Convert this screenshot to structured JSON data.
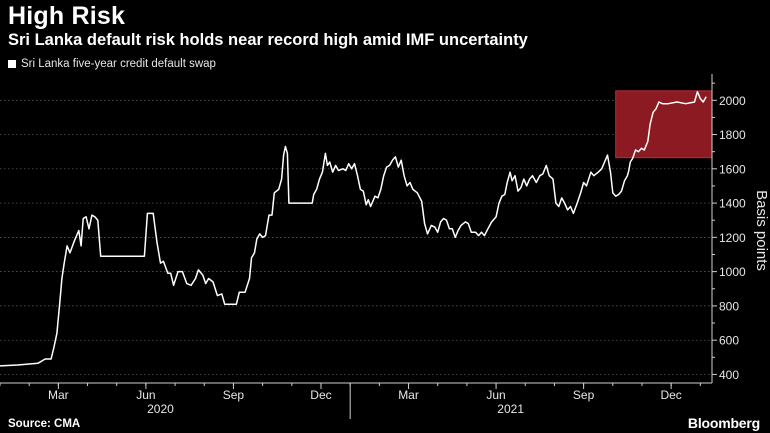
{
  "header": {
    "title": "High Risk",
    "subtitle": "Sri Lanka default risk holds near record high amid IMF uncertainty"
  },
  "footer": {
    "source": "Source: CMA",
    "brand": "Bloomberg"
  },
  "colors": {
    "background": "#000000",
    "line": "#ffffff",
    "highlight_fill": "#8b1a22",
    "highlight_border": "#c0283a",
    "grid": "#666666"
  },
  "chart_data": {
    "type": "line",
    "title": "High Risk",
    "subtitle": "Sri Lanka default risk holds near record high amid IMF uncertainty",
    "xlabel": "",
    "ylabel": "Basis points",
    "ylim": [
      350,
      2130
    ],
    "yticks": [
      400,
      600,
      800,
      1000,
      1200,
      1400,
      1600,
      1800,
      2000
    ],
    "y_axis_side": "right",
    "grid": true,
    "legend_position": "top-left",
    "x_month_ticks": [
      {
        "label": "Mar",
        "month": 2.0
      },
      {
        "label": "Jun",
        "month": 5.0
      },
      {
        "label": "Sep",
        "month": 8.0
      },
      {
        "label": "Dec",
        "month": 11.0
      },
      {
        "label": "Mar",
        "month": 14.0
      },
      {
        "label": "Jun",
        "month": 17.0
      },
      {
        "label": "Sep",
        "month": 20.0
      },
      {
        "label": "Dec",
        "month": 23.0
      }
    ],
    "x_year_labels": [
      {
        "label": "2020",
        "month": 5.5
      },
      {
        "label": "2021",
        "month": 17.5
      }
    ],
    "x_range_months": [
      0.0,
      24.4
    ],
    "x_year_separator_month": 12.0,
    "highlight": {
      "x": [
        21.1,
        24.4
      ],
      "y": [
        1665,
        2055
      ]
    },
    "series": [
      {
        "name": "Sri Lanka five-year credit default swap",
        "points": [
          [
            0.0,
            450
          ],
          [
            0.6,
            455
          ],
          [
            0.9,
            460
          ],
          [
            1.3,
            465
          ],
          [
            1.55,
            490
          ],
          [
            1.75,
            490
          ],
          [
            1.85,
            560
          ],
          [
            1.95,
            640
          ],
          [
            2.05,
            820
          ],
          [
            2.12,
            960
          ],
          [
            2.2,
            1050
          ],
          [
            2.3,
            1150
          ],
          [
            2.4,
            1110
          ],
          [
            2.55,
            1180
          ],
          [
            2.7,
            1240
          ],
          [
            2.78,
            1150
          ],
          [
            2.85,
            1310
          ],
          [
            2.95,
            1320
          ],
          [
            3.05,
            1250
          ],
          [
            3.15,
            1330
          ],
          [
            3.25,
            1320
          ],
          [
            3.35,
            1300
          ],
          [
            3.45,
            1090
          ],
          [
            3.9,
            1090
          ],
          [
            4.5,
            1090
          ],
          [
            4.95,
            1090
          ],
          [
            5.05,
            1340
          ],
          [
            5.25,
            1340
          ],
          [
            5.38,
            1170
          ],
          [
            5.5,
            1050
          ],
          [
            5.6,
            1060
          ],
          [
            5.75,
            990
          ],
          [
            5.85,
            990
          ],
          [
            5.95,
            920
          ],
          [
            6.1,
            1000
          ],
          [
            6.25,
            1000
          ],
          [
            6.4,
            930
          ],
          [
            6.55,
            920
          ],
          [
            6.7,
            960
          ],
          [
            6.8,
            1010
          ],
          [
            6.95,
            980
          ],
          [
            7.05,
            930
          ],
          [
            7.15,
            960
          ],
          [
            7.3,
            940
          ],
          [
            7.45,
            860
          ],
          [
            7.6,
            870
          ],
          [
            7.7,
            810
          ],
          [
            7.95,
            810
          ],
          [
            8.1,
            810
          ],
          [
            8.2,
            880
          ],
          [
            8.4,
            880
          ],
          [
            8.55,
            960
          ],
          [
            8.62,
            1080
          ],
          [
            8.72,
            1110
          ],
          [
            8.8,
            1190
          ],
          [
            8.9,
            1220
          ],
          [
            9.0,
            1200
          ],
          [
            9.1,
            1210
          ],
          [
            9.22,
            1330
          ],
          [
            9.32,
            1330
          ],
          [
            9.4,
            1460
          ],
          [
            9.55,
            1480
          ],
          [
            9.65,
            1540
          ],
          [
            9.72,
            1680
          ],
          [
            9.78,
            1730
          ],
          [
            9.85,
            1690
          ],
          [
            9.9,
            1400
          ],
          [
            10.0,
            1400
          ],
          [
            10.2,
            1400
          ],
          [
            10.4,
            1400
          ],
          [
            10.7,
            1400
          ],
          [
            10.75,
            1450
          ],
          [
            10.85,
            1480
          ],
          [
            10.95,
            1540
          ],
          [
            11.05,
            1580
          ],
          [
            11.15,
            1690
          ],
          [
            11.22,
            1620
          ],
          [
            11.3,
            1640
          ],
          [
            11.4,
            1580
          ],
          [
            11.5,
            1620
          ],
          [
            11.6,
            1590
          ],
          [
            11.75,
            1600
          ],
          [
            11.85,
            1590
          ],
          [
            11.95,
            1630
          ],
          [
            12.05,
            1600
          ],
          [
            12.15,
            1630
          ],
          [
            12.25,
            1560
          ],
          [
            12.35,
            1480
          ],
          [
            12.45,
            1470
          ],
          [
            12.55,
            1390
          ],
          [
            12.62,
            1420
          ],
          [
            12.7,
            1380
          ],
          [
            12.85,
            1440
          ],
          [
            12.95,
            1430
          ],
          [
            13.05,
            1480
          ],
          [
            13.15,
            1560
          ],
          [
            13.25,
            1610
          ],
          [
            13.35,
            1620
          ],
          [
            13.45,
            1650
          ],
          [
            13.55,
            1670
          ],
          [
            13.65,
            1610
          ],
          [
            13.75,
            1650
          ],
          [
            13.85,
            1560
          ],
          [
            13.95,
            1500
          ],
          [
            14.05,
            1520
          ],
          [
            14.15,
            1480
          ],
          [
            14.3,
            1460
          ],
          [
            14.45,
            1410
          ],
          [
            14.55,
            1280
          ],
          [
            14.65,
            1220
          ],
          [
            14.78,
            1270
          ],
          [
            14.9,
            1260
          ],
          [
            15.0,
            1230
          ],
          [
            15.1,
            1290
          ],
          [
            15.2,
            1310
          ],
          [
            15.3,
            1300
          ],
          [
            15.4,
            1250
          ],
          [
            15.5,
            1250
          ],
          [
            15.6,
            1200
          ],
          [
            15.7,
            1240
          ],
          [
            15.8,
            1270
          ],
          [
            15.95,
            1290
          ],
          [
            16.05,
            1280
          ],
          [
            16.15,
            1230
          ],
          [
            16.3,
            1230
          ],
          [
            16.4,
            1210
          ],
          [
            16.5,
            1230
          ],
          [
            16.6,
            1210
          ],
          [
            16.72,
            1250
          ],
          [
            16.85,
            1290
          ],
          [
            17.0,
            1320
          ],
          [
            17.1,
            1400
          ],
          [
            17.2,
            1440
          ],
          [
            17.3,
            1450
          ],
          [
            17.38,
            1520
          ],
          [
            17.48,
            1580
          ],
          [
            17.55,
            1530
          ],
          [
            17.65,
            1560
          ],
          [
            17.75,
            1470
          ],
          [
            17.85,
            1490
          ],
          [
            17.95,
            1540
          ],
          [
            18.05,
            1500
          ],
          [
            18.15,
            1540
          ],
          [
            18.25,
            1560
          ],
          [
            18.38,
            1520
          ],
          [
            18.5,
            1560
          ],
          [
            18.6,
            1570
          ],
          [
            18.72,
            1620
          ],
          [
            18.82,
            1560
          ],
          [
            18.95,
            1540
          ],
          [
            19.05,
            1400
          ],
          [
            19.15,
            1380
          ],
          [
            19.25,
            1430
          ],
          [
            19.35,
            1400
          ],
          [
            19.45,
            1360
          ],
          [
            19.55,
            1380
          ],
          [
            19.65,
            1340
          ],
          [
            19.78,
            1400
          ],
          [
            19.9,
            1460
          ],
          [
            20.0,
            1520
          ],
          [
            20.1,
            1500
          ],
          [
            20.25,
            1580
          ],
          [
            20.35,
            1560
          ],
          [
            20.5,
            1580
          ],
          [
            20.62,
            1600
          ],
          [
            20.72,
            1640
          ],
          [
            20.82,
            1680
          ],
          [
            20.92,
            1580
          ],
          [
            21.0,
            1460
          ],
          [
            21.1,
            1440
          ],
          [
            21.2,
            1450
          ],
          [
            21.3,
            1470
          ],
          [
            21.4,
            1530
          ],
          [
            21.5,
            1560
          ],
          [
            21.55,
            1590
          ],
          [
            21.6,
            1640
          ],
          [
            21.68,
            1660
          ],
          [
            21.78,
            1710
          ],
          [
            21.88,
            1700
          ],
          [
            21.98,
            1720
          ],
          [
            22.08,
            1710
          ],
          [
            22.2,
            1760
          ],
          [
            22.28,
            1860
          ],
          [
            22.38,
            1930
          ],
          [
            22.48,
            1950
          ],
          [
            22.58,
            1990
          ],
          [
            22.7,
            1980
          ],
          [
            22.9,
            1980
          ],
          [
            23.2,
            1990
          ],
          [
            23.5,
            1980
          ],
          [
            23.8,
            1990
          ],
          [
            23.9,
            2050
          ],
          [
            24.0,
            2010
          ],
          [
            24.1,
            1990
          ],
          [
            24.2,
            2020
          ]
        ]
      }
    ]
  }
}
